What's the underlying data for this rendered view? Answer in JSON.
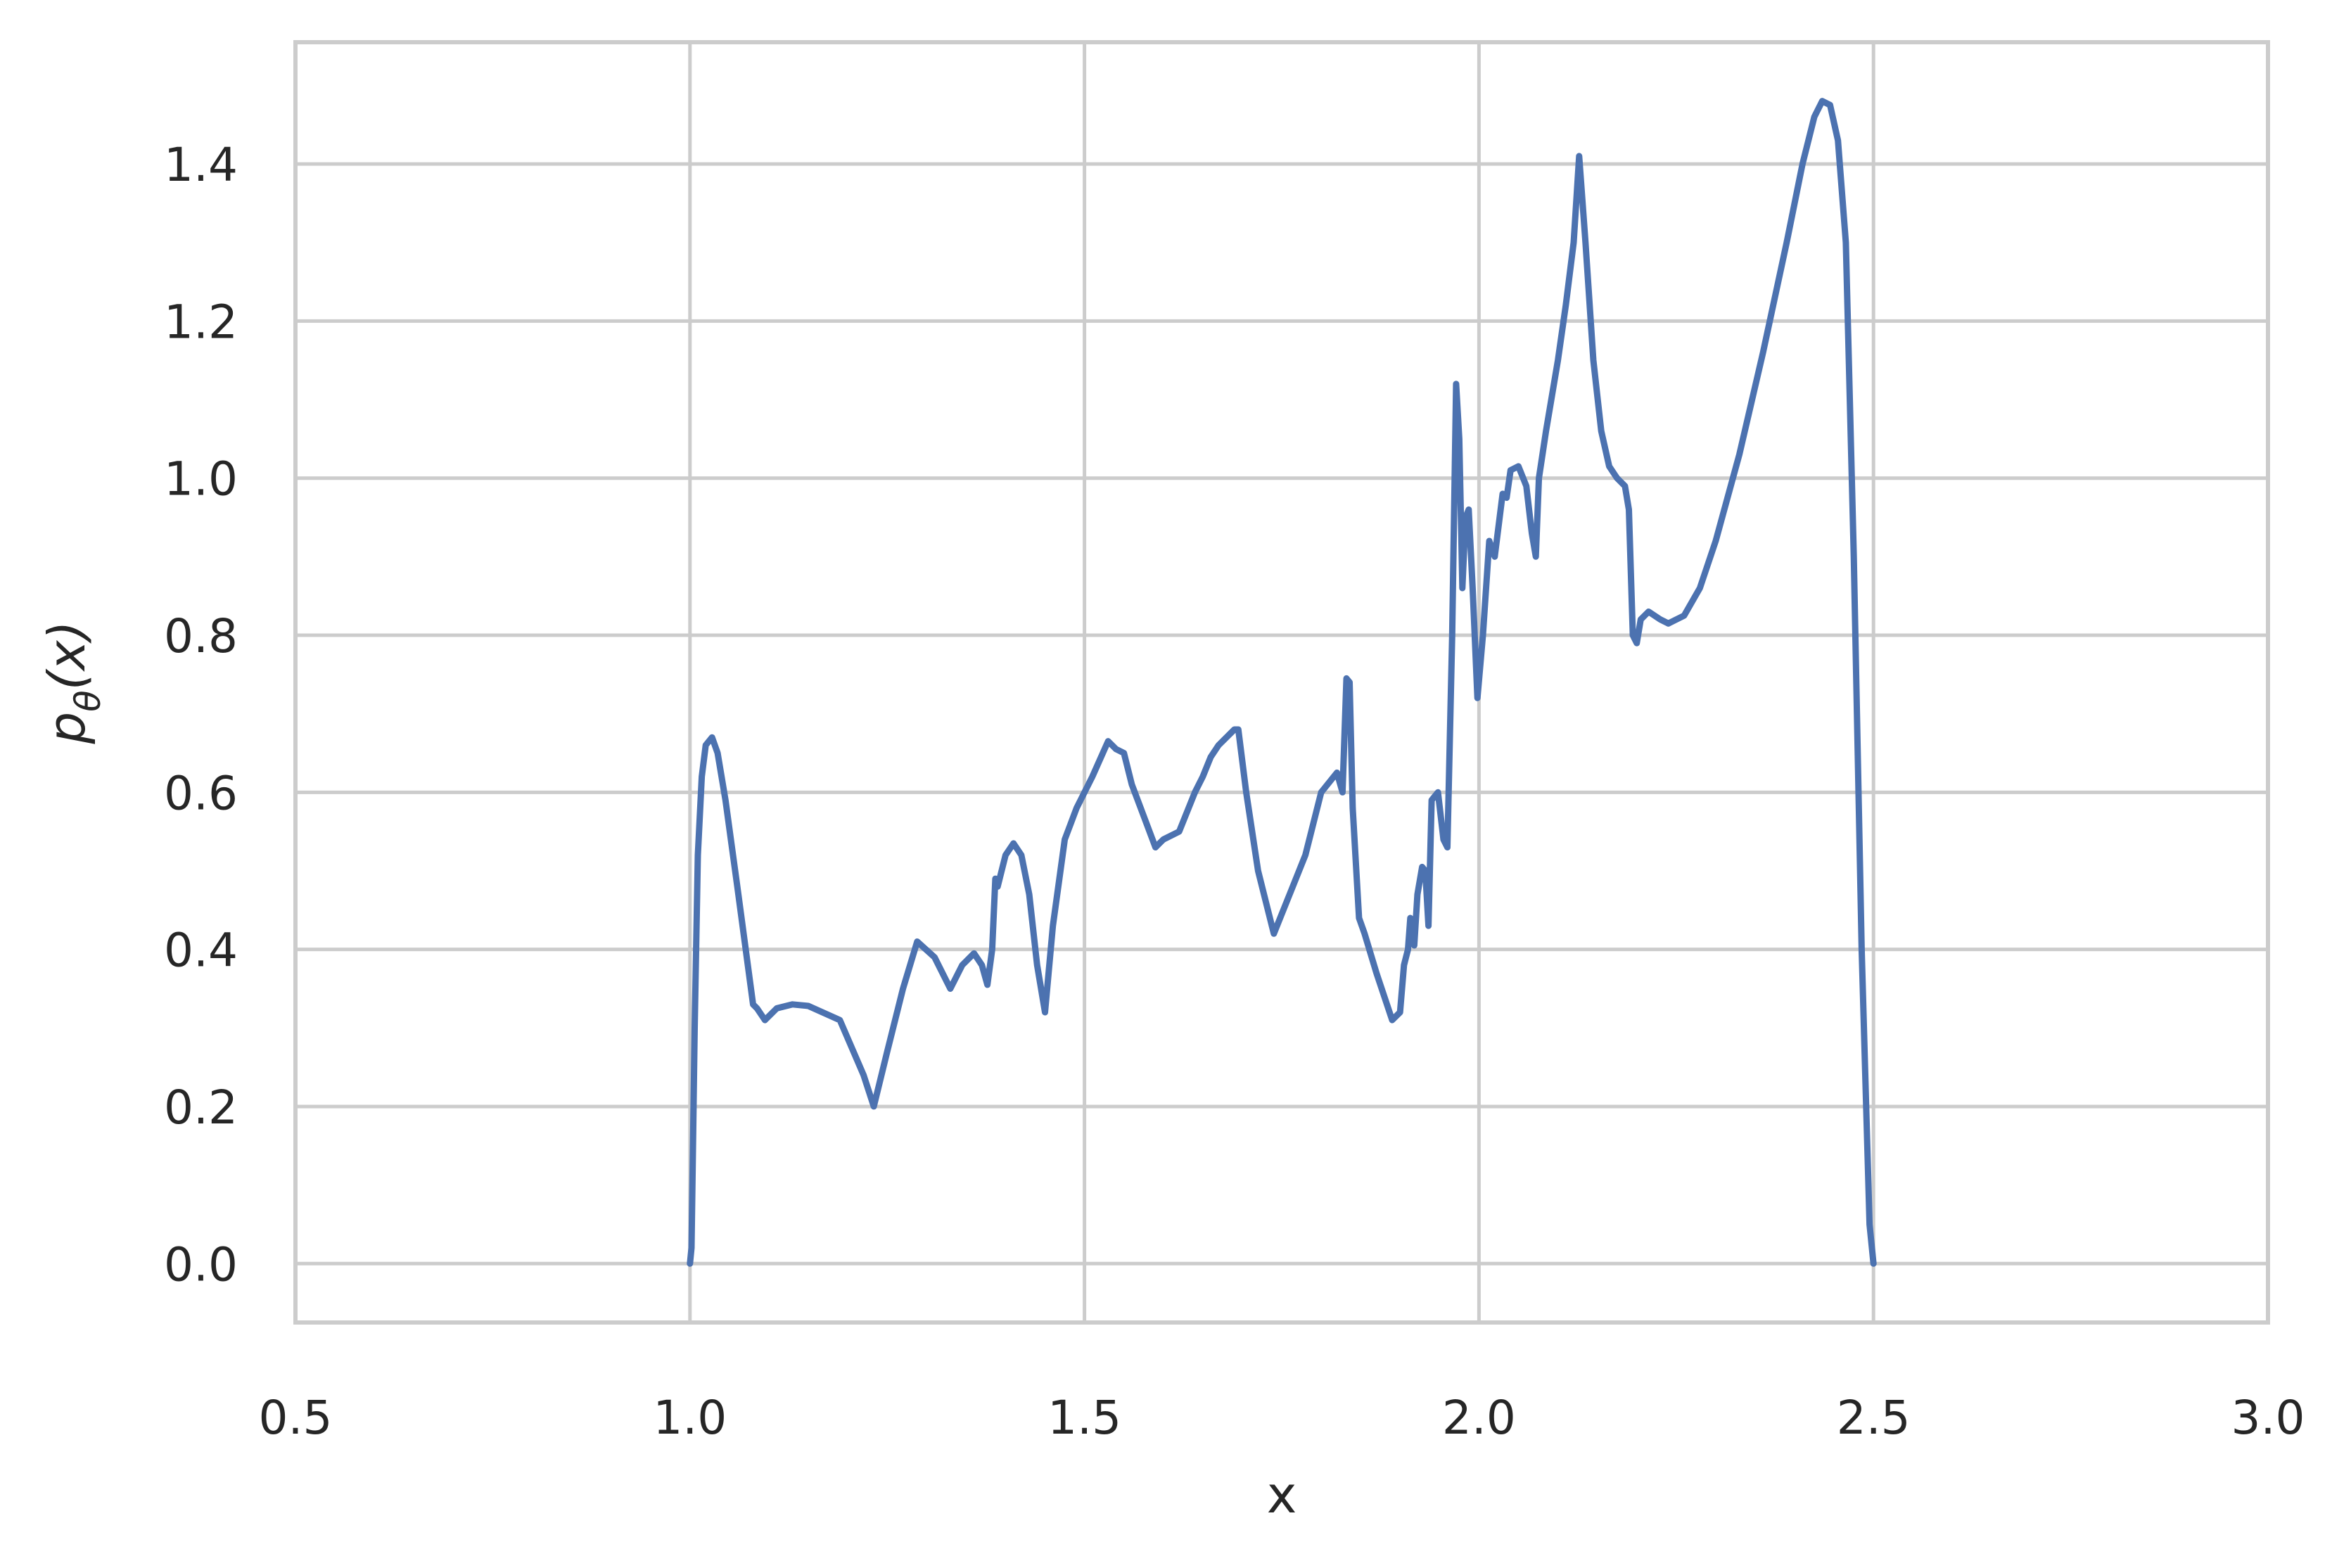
{
  "chart_data": {
    "type": "line",
    "xlabel": "x",
    "ylabel": "p_θ(x)",
    "xlim": [
      0.5,
      3.0
    ],
    "ylim": [
      -0.075,
      1.555
    ],
    "xticks": [
      0.5,
      1.0,
      1.5,
      2.0,
      2.5,
      3.0
    ],
    "xtick_labels": [
      "0.5",
      "1.0",
      "1.5",
      "2.0",
      "2.5",
      "3.0"
    ],
    "yticks": [
      0.0,
      0.2,
      0.4,
      0.6,
      0.8,
      1.0,
      1.2,
      1.4
    ],
    "ytick_labels": [
      "0.0",
      "0.2",
      "0.4",
      "0.6",
      "0.8",
      "1.0",
      "1.2",
      "1.4"
    ],
    "grid": true,
    "series": [
      {
        "color": "#4c72b0",
        "points": [
          [
            1.0,
            0.0
          ],
          [
            1.002,
            0.02
          ],
          [
            1.006,
            0.3
          ],
          [
            1.01,
            0.52
          ],
          [
            1.015,
            0.62
          ],
          [
            1.02,
            0.66
          ],
          [
            1.028,
            0.67
          ],
          [
            1.035,
            0.65
          ],
          [
            1.045,
            0.59
          ],
          [
            1.06,
            0.48
          ],
          [
            1.08,
            0.33
          ],
          [
            1.085,
            0.325
          ],
          [
            1.095,
            0.31
          ],
          [
            1.11,
            0.325
          ],
          [
            1.13,
            0.33
          ],
          [
            1.15,
            0.328
          ],
          [
            1.19,
            0.31
          ],
          [
            1.22,
            0.24
          ],
          [
            1.233,
            0.2
          ],
          [
            1.25,
            0.27
          ],
          [
            1.27,
            0.35
          ],
          [
            1.288,
            0.41
          ],
          [
            1.31,
            0.39
          ],
          [
            1.33,
            0.35
          ],
          [
            1.345,
            0.38
          ],
          [
            1.36,
            0.395
          ],
          [
            1.37,
            0.38
          ],
          [
            1.377,
            0.355
          ],
          [
            1.383,
            0.4
          ],
          [
            1.387,
            0.49
          ],
          [
            1.39,
            0.48
          ],
          [
            1.4,
            0.52
          ],
          [
            1.41,
            0.535
          ],
          [
            1.42,
            0.52
          ],
          [
            1.43,
            0.47
          ],
          [
            1.44,
            0.38
          ],
          [
            1.45,
            0.32
          ],
          [
            1.46,
            0.43
          ],
          [
            1.475,
            0.54
          ],
          [
            1.49,
            0.58
          ],
          [
            1.51,
            0.62
          ],
          [
            1.53,
            0.665
          ],
          [
            1.54,
            0.655
          ],
          [
            1.55,
            0.65
          ],
          [
            1.56,
            0.61
          ],
          [
            1.575,
            0.57
          ],
          [
            1.59,
            0.53
          ],
          [
            1.6,
            0.54
          ],
          [
            1.62,
            0.55
          ],
          [
            1.64,
            0.6
          ],
          [
            1.65,
            0.62
          ],
          [
            1.66,
            0.645
          ],
          [
            1.67,
            0.66
          ],
          [
            1.69,
            0.68
          ],
          [
            1.695,
            0.68
          ],
          [
            1.705,
            0.6
          ],
          [
            1.72,
            0.5
          ],
          [
            1.74,
            0.42
          ],
          [
            1.76,
            0.47
          ],
          [
            1.78,
            0.52
          ],
          [
            1.8,
            0.6
          ],
          [
            1.82,
            0.625
          ],
          [
            1.827,
            0.6
          ],
          [
            1.832,
            0.745
          ],
          [
            1.836,
            0.74
          ],
          [
            1.84,
            0.58
          ],
          [
            1.848,
            0.44
          ],
          [
            1.855,
            0.42
          ],
          [
            1.87,
            0.37
          ],
          [
            1.89,
            0.31
          ],
          [
            1.9,
            0.32
          ],
          [
            1.905,
            0.38
          ],
          [
            1.91,
            0.4
          ],
          [
            1.913,
            0.44
          ],
          [
            1.918,
            0.405
          ],
          [
            1.922,
            0.47
          ],
          [
            1.928,
            0.505
          ],
          [
            1.932,
            0.5
          ],
          [
            1.936,
            0.43
          ],
          [
            1.94,
            0.59
          ],
          [
            1.948,
            0.6
          ],
          [
            1.955,
            0.54
          ],
          [
            1.96,
            0.53
          ],
          [
            1.966,
            0.8
          ],
          [
            1.971,
            1.12
          ],
          [
            1.975,
            1.05
          ],
          [
            1.979,
            0.86
          ],
          [
            1.983,
            0.95
          ],
          [
            1.987,
            0.96
          ],
          [
            1.992,
            0.86
          ],
          [
            1.998,
            0.72
          ],
          [
            2.005,
            0.8
          ],
          [
            2.013,
            0.92
          ],
          [
            2.02,
            0.9
          ],
          [
            2.025,
            0.94
          ],
          [
            2.03,
            0.98
          ],
          [
            2.035,
            0.975
          ],
          [
            2.04,
            1.01
          ],
          [
            2.05,
            1.015
          ],
          [
            2.06,
            0.99
          ],
          [
            2.067,
            0.93
          ],
          [
            2.072,
            0.9
          ],
          [
            2.076,
            1.0
          ],
          [
            2.085,
            1.06
          ],
          [
            2.1,
            1.15
          ],
          [
            2.11,
            1.22
          ],
          [
            2.12,
            1.3
          ],
          [
            2.127,
            1.41
          ],
          [
            2.135,
            1.3
          ],
          [
            2.145,
            1.15
          ],
          [
            2.155,
            1.06
          ],
          [
            2.165,
            1.015
          ],
          [
            2.175,
            1.0
          ],
          [
            2.185,
            0.99
          ],
          [
            2.19,
            0.96
          ],
          [
            2.195,
            0.8
          ],
          [
            2.2,
            0.79
          ],
          [
            2.205,
            0.82
          ],
          [
            2.215,
            0.83
          ],
          [
            2.23,
            0.82
          ],
          [
            2.24,
            0.815
          ],
          [
            2.26,
            0.825
          ],
          [
            2.28,
            0.86
          ],
          [
            2.3,
            0.92
          ],
          [
            2.33,
            1.03
          ],
          [
            2.36,
            1.16
          ],
          [
            2.39,
            1.3
          ],
          [
            2.41,
            1.4
          ],
          [
            2.425,
            1.46
          ],
          [
            2.435,
            1.48
          ],
          [
            2.445,
            1.475
          ],
          [
            2.455,
            1.43
          ],
          [
            2.465,
            1.3
          ],
          [
            2.475,
            0.9
          ],
          [
            2.485,
            0.4
          ],
          [
            2.495,
            0.05
          ],
          [
            2.5,
            0.0
          ]
        ]
      }
    ]
  }
}
